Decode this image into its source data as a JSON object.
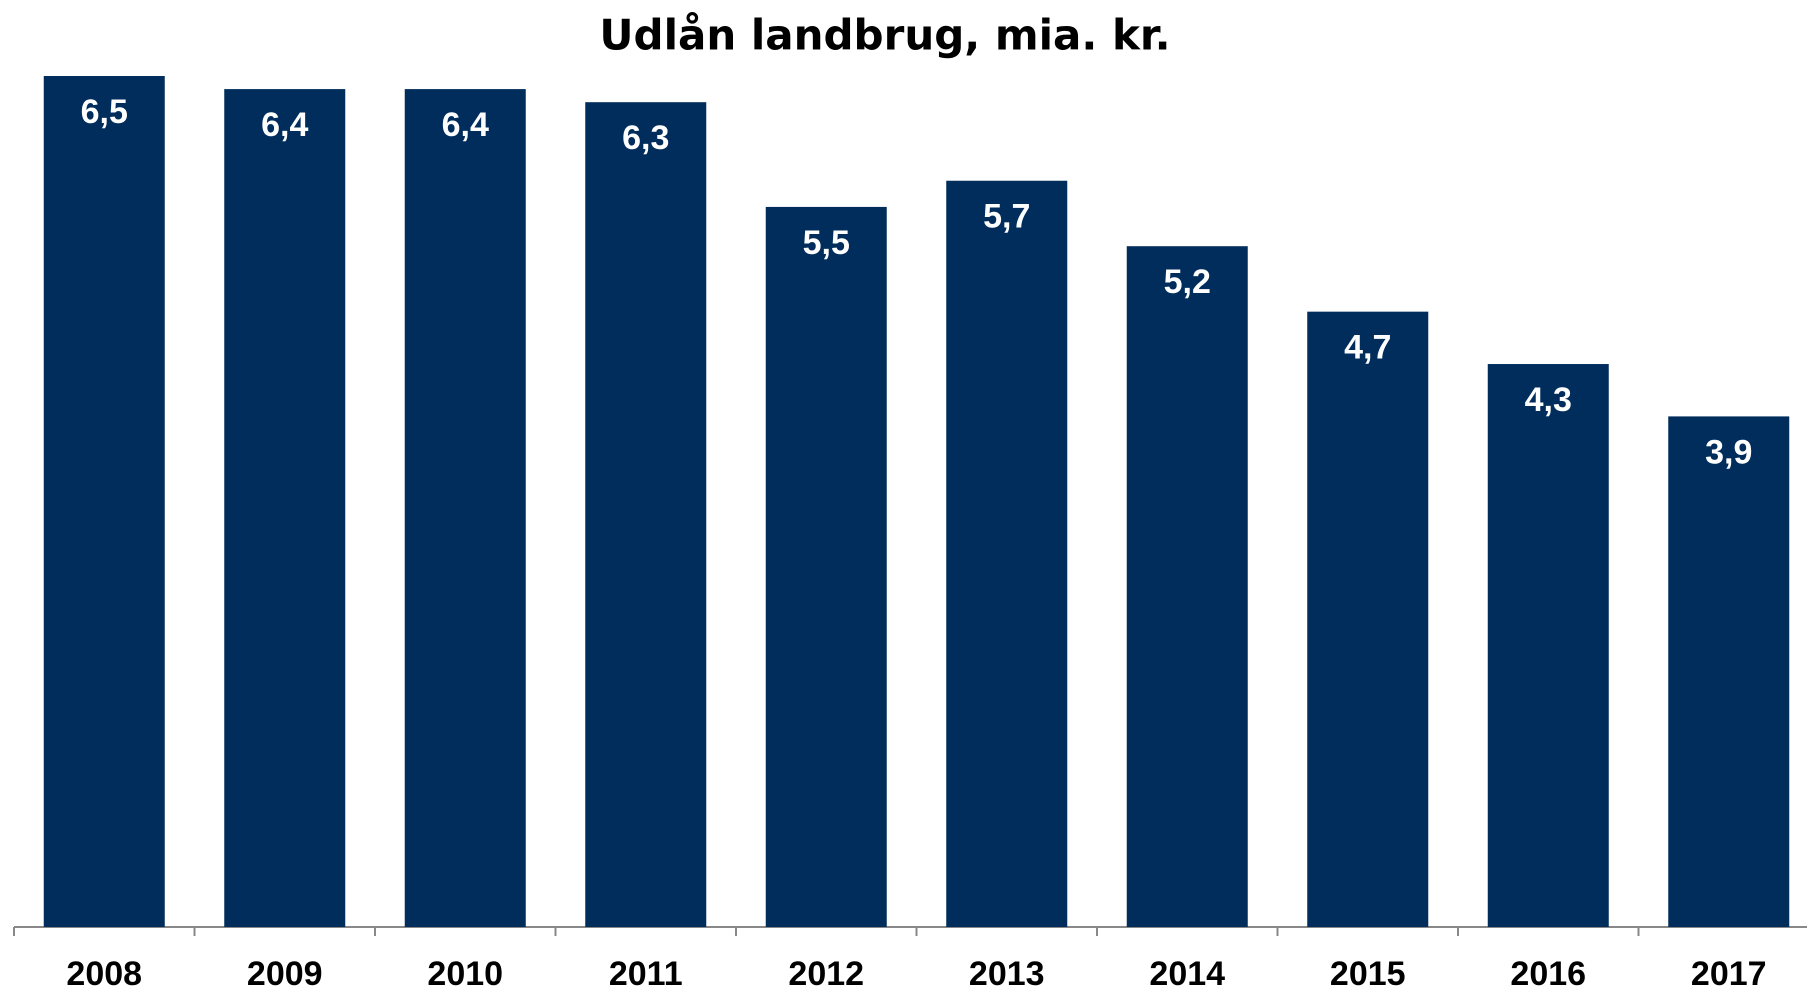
{
  "chart_data": {
    "type": "bar",
    "title": "Udlån landbrug, mia. kr.",
    "categories": [
      "2008",
      "2009",
      "2010",
      "2011",
      "2012",
      "2013",
      "2014",
      "2015",
      "2016",
      "2017"
    ],
    "values": [
      6.5,
      6.4,
      6.4,
      6.3,
      5.5,
      5.7,
      5.2,
      4.7,
      4.3,
      3.9
    ],
    "value_labels": [
      "6,5",
      "6,4",
      "6,4",
      "6,3",
      "5,5",
      "5,7",
      "5,2",
      "4,7",
      "4,3",
      "3,9"
    ],
    "color": "#002d5c",
    "ylim": [
      0,
      6.5
    ]
  }
}
